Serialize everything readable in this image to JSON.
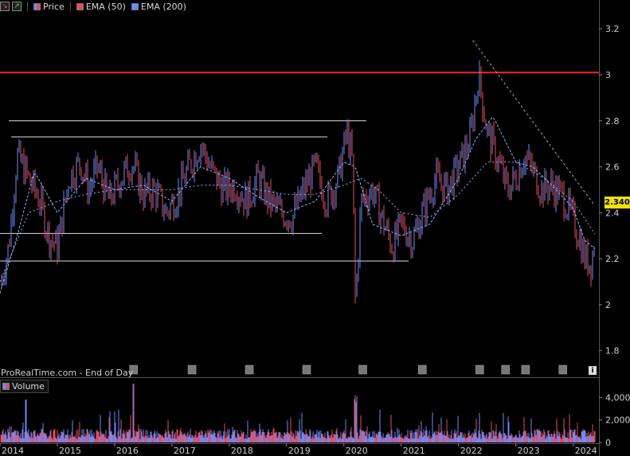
{
  "toolbar": {
    "legend": [
      {
        "label": "Price",
        "icon": "price-candle-icon"
      },
      {
        "label": "EMA (50)",
        "color": "#e84c5a"
      },
      {
        "label": "EMA (200)",
        "color": "#6a8cff"
      }
    ]
  },
  "footer": {
    "source": "ProRealTime.com - End of Day"
  },
  "volume_panel": {
    "label": "Volume",
    "axis_ticks": [
      "4,000k",
      "2,000k",
      "0"
    ]
  },
  "last_price": "2.340",
  "colors": {
    "up": "#6a8cff",
    "down": "#e84c5a",
    "resistance": "#e02020",
    "grid_line": "#e0e0e0",
    "trend": "#9aa8c8",
    "highlight": "#f2e200"
  },
  "chart_data": [
    {
      "type": "candlestick",
      "title": "",
      "xlabel": "",
      "ylabel": "",
      "x_ticks": [
        "2014",
        "2015",
        "2016",
        "2017",
        "2018",
        "2019",
        "2020",
        "2021",
        "2022",
        "2023",
        "2024"
      ],
      "y_ticks": [
        "1.8",
        "2",
        "2.2",
        "2.4",
        "2.6",
        "2.8",
        "3",
        "3.2"
      ],
      "ylim": [
        1.74,
        3.27
      ],
      "xlim": [
        2014.0,
        2024.45
      ],
      "series": [
        {
          "name": "Price",
          "x": [
            2014.0,
            2014.15,
            2014.3,
            2014.5,
            2014.7,
            2014.85,
            2015.0,
            2015.2,
            2015.4,
            2015.55,
            2015.7,
            2015.9,
            2016.1,
            2016.3,
            2016.5,
            2016.7,
            2016.9,
            2017.1,
            2017.3,
            2017.5,
            2017.7,
            2017.9,
            2018.1,
            2018.3,
            2018.5,
            2018.7,
            2018.9,
            2019.1,
            2019.3,
            2019.5,
            2019.7,
            2019.9,
            2020.05,
            2020.15,
            2020.2,
            2020.3,
            2020.5,
            2020.7,
            2020.85,
            2021.0,
            2021.2,
            2021.4,
            2021.6,
            2021.8,
            2022.0,
            2022.2,
            2022.35,
            2022.5,
            2022.7,
            2022.85,
            2023.0,
            2023.15,
            2023.3,
            2023.45,
            2023.6,
            2023.8,
            2023.95,
            2024.1,
            2024.2,
            2024.32,
            2024.4
          ],
          "values": [
            2.08,
            2.25,
            2.65,
            2.55,
            2.45,
            2.3,
            2.25,
            2.55,
            2.62,
            2.5,
            2.6,
            2.45,
            2.55,
            2.62,
            2.48,
            2.5,
            2.4,
            2.48,
            2.6,
            2.7,
            2.58,
            2.5,
            2.52,
            2.45,
            2.55,
            2.45,
            2.4,
            2.38,
            2.5,
            2.6,
            2.45,
            2.55,
            2.75,
            2.62,
            2.0,
            2.45,
            2.5,
            2.35,
            2.25,
            2.35,
            2.28,
            2.42,
            2.55,
            2.5,
            2.6,
            2.72,
            3.0,
            2.75,
            2.62,
            2.5,
            2.55,
            2.65,
            2.58,
            2.5,
            2.52,
            2.48,
            2.4,
            2.3,
            2.2,
            2.18,
            2.34
          ]
        },
        {
          "name": "EMA (50)",
          "x": [
            2014.0,
            2014.3,
            2014.6,
            2015.0,
            2015.5,
            2016.0,
            2016.5,
            2017.0,
            2017.5,
            2018.0,
            2018.5,
            2019.0,
            2019.5,
            2020.0,
            2020.2,
            2020.5,
            2021.0,
            2021.5,
            2022.0,
            2022.3,
            2022.6,
            2023.0,
            2023.3,
            2023.7,
            2024.0,
            2024.2,
            2024.4
          ],
          "values": [
            2.05,
            2.3,
            2.58,
            2.4,
            2.55,
            2.5,
            2.52,
            2.45,
            2.6,
            2.55,
            2.47,
            2.4,
            2.45,
            2.62,
            2.6,
            2.35,
            2.3,
            2.35,
            2.55,
            2.72,
            2.82,
            2.62,
            2.6,
            2.5,
            2.42,
            2.28,
            2.24
          ]
        },
        {
          "name": "EMA (200)",
          "x": [
            2014.0,
            2014.5,
            2015.0,
            2015.5,
            2016.0,
            2016.5,
            2017.0,
            2017.5,
            2018.0,
            2018.5,
            2019.0,
            2019.5,
            2020.0,
            2020.3,
            2020.6,
            2021.0,
            2021.5,
            2022.0,
            2022.5,
            2023.0,
            2023.5,
            2024.0,
            2024.4
          ],
          "values": [
            2.1,
            2.4,
            2.45,
            2.48,
            2.5,
            2.5,
            2.5,
            2.52,
            2.52,
            2.5,
            2.48,
            2.48,
            2.52,
            2.55,
            2.5,
            2.4,
            2.38,
            2.48,
            2.62,
            2.62,
            2.55,
            2.45,
            2.3
          ]
        }
      ],
      "reference_lines": [
        {
          "label": "resistance",
          "value": 3.01
        },
        {
          "label": "support",
          "value": 2.8
        },
        {
          "label": "support",
          "value": 2.73
        },
        {
          "label": "support",
          "value": 2.31
        },
        {
          "label": "support",
          "value": 2.19
        }
      ],
      "trendline": {
        "x": [
          2022.25,
          2024.35
        ],
        "values": [
          3.15,
          2.44
        ]
      },
      "grid": false,
      "legend": "top-left"
    },
    {
      "type": "bar",
      "title": "Volume",
      "y_ticks": [
        "4,000k",
        "2,000k",
        "0"
      ],
      "ylim": [
        0,
        5500
      ],
      "grid": false
    }
  ]
}
